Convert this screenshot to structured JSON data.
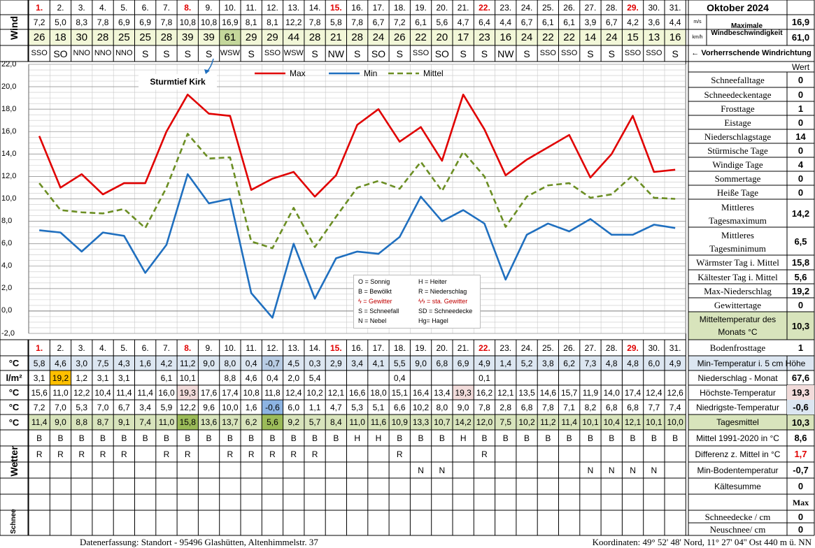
{
  "title": "Oktober 2024",
  "days": [
    "1.",
    "2.",
    "3.",
    "4.",
    "5.",
    "6.",
    "7.",
    "8.",
    "9.",
    "10.",
    "11.",
    "12.",
    "13.",
    "14.",
    "15.",
    "16.",
    "17.",
    "18.",
    "19.",
    "20.",
    "21.",
    "22.",
    "23.",
    "24.",
    "25.",
    "26.",
    "27.",
    "28.",
    "29.",
    "30.",
    "31."
  ],
  "red_days": [
    1,
    8,
    15,
    22,
    29
  ],
  "wind": {
    "label": "Wind",
    "ms": [
      "7,2",
      "5,0",
      "8,3",
      "7,8",
      "6,9",
      "6,9",
      "7,8",
      "10,8",
      "10,8",
      "16,9",
      "8,1",
      "8,1",
      "12,2",
      "7,8",
      "5,8",
      "7,8",
      "6,7",
      "7,2",
      "6,1",
      "5,6",
      "4,7",
      "6,4",
      "4,4",
      "6,7",
      "6,1",
      "6,1",
      "3,9",
      "6,7",
      "4,2",
      "3,6",
      "4,4"
    ],
    "kmh": [
      "26",
      "18",
      "30",
      "28",
      "25",
      "25",
      "28",
      "39",
      "39",
      "61",
      "29",
      "29",
      "44",
      "28",
      "21",
      "28",
      "24",
      "26",
      "22",
      "20",
      "17",
      "23",
      "16",
      "24",
      "22",
      "22",
      "14",
      "24",
      "15",
      "13",
      "16"
    ],
    "dir": [
      "SSO",
      "SO",
      "NNO",
      "NNO",
      "NNO",
      "S",
      "S",
      "S",
      "S",
      "WSW",
      "S",
      "SSO",
      "WSW",
      "S",
      "NW",
      "S",
      "SO",
      "S",
      "SSO",
      "SO",
      "S",
      "S",
      "NW",
      "S",
      "SSO",
      "SSO",
      "S",
      "S",
      "SSO",
      "SSO",
      "S"
    ],
    "unit_ms": "m/s",
    "unit_kmh": "km/h",
    "max_label": "Maximale Windbeschwindigkeit",
    "max_ms": "16,9",
    "max_kmh": "61,0",
    "dir_label": "← Vorherrschende Windrichtung"
  },
  "stats_header": "Wert",
  "stats": [
    {
      "label": "Schneefalltage",
      "value": "0"
    },
    {
      "label": "Schneedeckentage",
      "value": "0"
    },
    {
      "label": "Frosttage",
      "value": "1"
    },
    {
      "label": "Eistage",
      "value": "0"
    },
    {
      "label": "Niederschlagstage",
      "value": "14"
    },
    {
      "label": "Stürmische Tage",
      "value": "0"
    },
    {
      "label": "Windige Tage",
      "value": "4"
    },
    {
      "label": "Sommertage",
      "value": "0"
    },
    {
      "label": "Heiße Tage",
      "value": "0"
    }
  ],
  "stats2": [
    {
      "label1": "Mittleres",
      "label2": "Tagesmaximum",
      "value": "14,2"
    },
    {
      "label1": "Mittleres",
      "label2": "Tagesminimum",
      "value": "6,5"
    }
  ],
  "stats3": [
    {
      "label": "Wärmster Tag i. Mittel",
      "value": "15,8"
    },
    {
      "label": "Kältester Tag i. Mittel",
      "value": "5,6"
    },
    {
      "label": "Max-Niederschlag",
      "value": "19,2"
    },
    {
      "label": "Gewittertage",
      "value": "0"
    }
  ],
  "stats_mean": {
    "label1": "Mitteltemperatur des",
    "label2": "Monats °C",
    "value": "10,3"
  },
  "stats_boden": {
    "label": "Bodenfrosttage",
    "value": "1"
  },
  "annotation": "Sturmtief Kirk",
  "legend": [
    {
      "name": "Max",
      "color": "#e00000"
    },
    {
      "name": "Min",
      "color": "#1f6fbf"
    },
    {
      "name": "Mittel",
      "color": "#6b8e23"
    }
  ],
  "weather_key": [
    [
      "O = Sonnig",
      "H = Heiter"
    ],
    [
      "B = Bewölkt",
      "R = Niederschlag"
    ],
    [
      "ϟ = Gewitter",
      "ϟϟ = sta. Gewitter"
    ],
    [
      "S = Schneefall",
      "SD = Schneedecke"
    ],
    [
      "N = Nebel",
      "Hg= Hagel"
    ]
  ],
  "chart_data": {
    "type": "line",
    "x": [
      1,
      2,
      3,
      4,
      5,
      6,
      7,
      8,
      9,
      10,
      11,
      12,
      13,
      14,
      15,
      16,
      17,
      18,
      19,
      20,
      21,
      22,
      23,
      24,
      25,
      26,
      27,
      28,
      29,
      30,
      31
    ],
    "ylim": [
      -2,
      22
    ],
    "yticks": [
      "22,0",
      "20,0",
      "18,0",
      "16,0",
      "14,0",
      "12,0",
      "10,0",
      "8,0",
      "6,0",
      "4,0",
      "2,0",
      "0,0",
      "-2,0"
    ],
    "grid": true,
    "legend_position": "top",
    "series": [
      {
        "name": "Max",
        "values": [
          15.6,
          11.0,
          12.2,
          10.4,
          11.4,
          11.4,
          16.0,
          19.3,
          17.6,
          17.4,
          10.8,
          11.8,
          12.4,
          10.2,
          12.1,
          16.6,
          18.0,
          15.1,
          16.4,
          13.4,
          19.3,
          16.2,
          12.1,
          13.5,
          14.6,
          15.7,
          11.9,
          14.0,
          17.4,
          12.4,
          12.6
        ]
      },
      {
        "name": "Min",
        "values": [
          7.2,
          7.0,
          5.3,
          7.0,
          6.7,
          3.4,
          5.9,
          12.2,
          9.6,
          10.0,
          1.6,
          -0.6,
          6.0,
          1.1,
          4.7,
          5.3,
          5.1,
          6.6,
          10.2,
          8.0,
          9.0,
          7.8,
          2.8,
          6.8,
          7.8,
          7.1,
          8.2,
          6.8,
          6.8,
          7.7,
          7.4
        ]
      },
      {
        "name": "Mittel",
        "values": [
          11.4,
          9.0,
          8.8,
          8.7,
          9.1,
          7.4,
          11.0,
          15.8,
          13.6,
          13.7,
          6.2,
          5.6,
          9.2,
          5.7,
          8.4,
          11.0,
          11.6,
          10.9,
          13.3,
          10.7,
          14.2,
          12.0,
          7.5,
          10.2,
          11.2,
          11.4,
          10.1,
          10.4,
          12.1,
          10.1,
          10.0
        ]
      }
    ]
  },
  "rows": {
    "soil5": {
      "unit": "°C",
      "label": "Min-Temperatur i. 5 cm Höhe",
      "values": [
        "5,8",
        "4,6",
        "3,0",
        "7,5",
        "4,3",
        "1,6",
        "4,2",
        "11,2",
        "9,0",
        "8,0",
        "0,4",
        "-0,7",
        "4,5",
        "0,3",
        "2,9",
        "3,4",
        "4,1",
        "5,5",
        "9,0",
        "6,8",
        "6,9",
        "4,9",
        "1,4",
        "5,2",
        "3,8",
        "6,2",
        "7,3",
        "4,8",
        "4,8",
        "6,0",
        "4,9"
      ]
    },
    "precip": {
      "unit": "l/m²",
      "label": "Niederschlag - Monat",
      "total": "67,6",
      "values": [
        "3,1",
        "19,2",
        "1,2",
        "3,1",
        "3,1",
        "",
        "6,1",
        "10,1",
        "",
        "8,8",
        "4,6",
        "0,4",
        "2,0",
        "5,4",
        "",
        "",
        "",
        "0,4",
        "",
        "",
        "",
        "0,1",
        "",
        "",
        "",
        "",
        "",
        "",
        "",
        "",
        ""
      ]
    },
    "tmax": {
      "unit": "°C",
      "label": "Höchste-Temperatur",
      "total": "19,3",
      "values": [
        "15,6",
        "11,0",
        "12,2",
        "10,4",
        "11,4",
        "11,4",
        "16,0",
        "19,3",
        "17,6",
        "17,4",
        "10,8",
        "11,8",
        "12,4",
        "10,2",
        "12,1",
        "16,6",
        "18,0",
        "15,1",
        "16,4",
        "13,4",
        "19,3",
        "16,2",
        "12,1",
        "13,5",
        "14,6",
        "15,7",
        "11,9",
        "14,0",
        "17,4",
        "12,4",
        "12,6"
      ]
    },
    "tmin": {
      "unit": "°C",
      "label": "Niedrigste-Temperatur",
      "total": "-0,6",
      "values": [
        "7,2",
        "7,0",
        "5,3",
        "7,0",
        "6,7",
        "3,4",
        "5,9",
        "12,2",
        "9,6",
        "10,0",
        "1,6",
        "-0,6",
        "6,0",
        "1,1",
        "4,7",
        "5,3",
        "5,1",
        "6,6",
        "10,2",
        "8,0",
        "9,0",
        "7,8",
        "2,8",
        "6,8",
        "7,8",
        "7,1",
        "8,2",
        "6,8",
        "6,8",
        "7,7",
        "7,4"
      ]
    },
    "tmean": {
      "unit": "°C",
      "label": "Tagesmittel",
      "total": "10,3",
      "values": [
        "11,4",
        "9,0",
        "8,8",
        "8,7",
        "9,1",
        "7,4",
        "11,0",
        "15,8",
        "13,6",
        "13,7",
        "6,2",
        "5,6",
        "9,2",
        "5,7",
        "8,4",
        "11,0",
        "11,6",
        "10,9",
        "13,3",
        "10,7",
        "14,2",
        "12,0",
        "7,5",
        "10,2",
        "11,2",
        "11,4",
        "10,1",
        "10,4",
        "12,1",
        "10,1",
        "10,0"
      ]
    }
  },
  "weather": {
    "label": "Wetter",
    "row1": [
      "B",
      "B",
      "B",
      "B",
      "B",
      "B",
      "B",
      "B",
      "B",
      "B",
      "B",
      "B",
      "B",
      "B",
      "B",
      "H",
      "H",
      "B",
      "B",
      "B",
      "H",
      "B",
      "B",
      "B",
      "B",
      "B",
      "B",
      "B",
      "B",
      "B",
      "B"
    ],
    "row2": [
      "R",
      "R",
      "R",
      "R",
      "R",
      "",
      "R",
      "R",
      "",
      "R",
      "R",
      "R",
      "R",
      "R",
      "",
      "",
      "",
      "R",
      "",
      "",
      "",
      "R",
      "",
      "",
      "",
      "",
      "",
      "",
      "",
      "",
      ""
    ],
    "row3": [
      "",
      "",
      "",
      "",
      "",
      "",
      "",
      "",
      "",
      "",
      "",
      "",
      "",
      "",
      "",
      "",
      "",
      "",
      "N",
      "N",
      "",
      "",
      "",
      "",
      "",
      "",
      "N",
      "N",
      "N",
      "N",
      ""
    ],
    "right": [
      {
        "label": "Mittel 1991-2020 in °C",
        "value": "8,6"
      },
      {
        "label": "Differenz z. Mittel in °C",
        "value": "1,7"
      },
      {
        "label": "Min-Bodentemperatur",
        "value": "-0,7"
      },
      {
        "label": "Kältesumme",
        "value": "0"
      },
      {
        "label": "",
        "value": "Max"
      }
    ]
  },
  "snow": {
    "label": "Schnee",
    "right": [
      {
        "label": "Schneedecke / cm",
        "value": "0"
      },
      {
        "label": "Neuschnee/ cm",
        "value": "0"
      }
    ]
  },
  "footer": {
    "left": "Datenerfassung:  Standort -  95496  Glashütten, Altenhimmelstr. 37",
    "right": "Koordinaten:  49° 52' 48' Nord,  11° 27' 04'' Ost  440 m ü. NN"
  }
}
